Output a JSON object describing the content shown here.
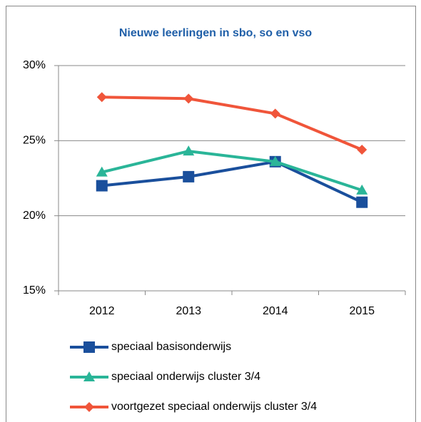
{
  "chart_data": {
    "type": "line",
    "title": "Nieuwe leerlingen in sbo, so en vso",
    "categories": [
      "2012",
      "2013",
      "2014",
      "2015"
    ],
    "series": [
      {
        "name": "speciaal basisonderwijs",
        "color": "#1a4f9c",
        "marker": "square",
        "values": [
          22.0,
          22.6,
          23.6,
          20.9
        ]
      },
      {
        "name": "speciaal onderwijs cluster 3/4",
        "color": "#2ab598",
        "marker": "triangle",
        "values": [
          22.9,
          24.3,
          23.6,
          21.7
        ]
      },
      {
        "name": "voortgezet speciaal onderwijs cluster 3/4",
        "color": "#f0553a",
        "marker": "diamond",
        "values": [
          27.9,
          27.8,
          26.8,
          24.4
        ]
      }
    ],
    "ylim": [
      15,
      30
    ],
    "yticks": [
      {
        "value": 15,
        "label": "15%"
      },
      {
        "value": 20,
        "label": "20%"
      },
      {
        "value": 25,
        "label": "25%"
      },
      {
        "value": 30,
        "label": "30%"
      }
    ],
    "grid": true
  }
}
